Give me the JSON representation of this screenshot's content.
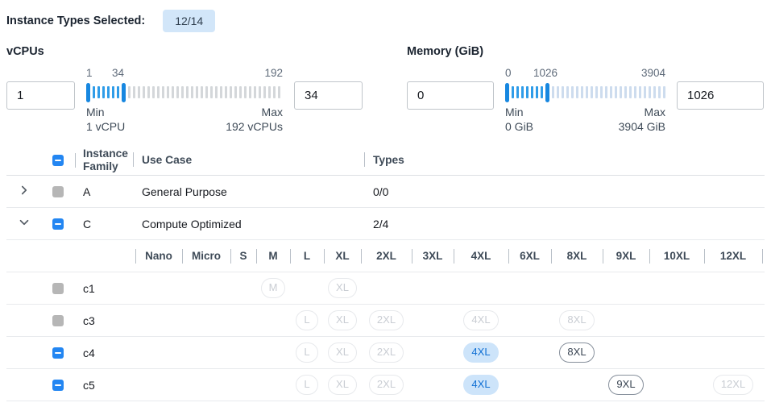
{
  "header": {
    "label": "Instance Types Selected:",
    "badge": "12/14"
  },
  "colors": {
    "accent": "#2386f2",
    "slider_selected": "#2f9ce8",
    "selected_badge_bg": "#cde4fa",
    "selected_badge_text": "#1170d4",
    "count_badge_bg": "#d2e6f9",
    "disabled_checkbox": "#b6b6b6"
  },
  "icons": {
    "expand_collapsed": "chevron-right-icon",
    "expand_expanded": "chevron-down-icon",
    "checkbox_indeterminate": "minus-icon"
  },
  "filters": [
    {
      "id": "vcpus",
      "title": "vCPUs",
      "min_input": "1",
      "max_input": "34",
      "scale": {
        "min": "1",
        "current": "34",
        "max": "192"
      },
      "min_caption": {
        "line1": "Min",
        "line2": "1 vCPU"
      },
      "max_caption": {
        "line1": "Max",
        "line2": "192 vCPUs"
      },
      "ticks": {
        "selected": 6,
        "unselected": 32
      }
    },
    {
      "id": "memory",
      "title": "Memory (GiB)",
      "min_input": "0",
      "max_input": "1026",
      "scale": {
        "min": "0",
        "current": "1026",
        "max": "3904"
      },
      "min_caption": {
        "line1": "Min",
        "line2": "0 GiB"
      },
      "max_caption": {
        "line1": "Max",
        "line2": "3904 GiB"
      },
      "ticks": {
        "selected": 7,
        "unselected": 24
      }
    }
  ],
  "table": {
    "columns": {
      "family": "Instance Family",
      "use_case": "Use Case",
      "types": "Types"
    },
    "select_all_state": "indeterminate",
    "families": [
      {
        "family": "A",
        "use_case": "General Purpose",
        "types": "0/0",
        "expanded": false,
        "checkbox": "gray"
      },
      {
        "family": "C",
        "use_case": "Compute Optimized",
        "types": "2/4",
        "expanded": true,
        "checkbox": "indeterminate"
      }
    ],
    "sizes": [
      "Nano",
      "Micro",
      "S",
      "M",
      "L",
      "XL",
      "2XL",
      "3XL",
      "4XL",
      "6XL",
      "8XL",
      "9XL",
      "10XL",
      "12XL"
    ],
    "type_rows": [
      {
        "name": "c1",
        "checkbox": "gray",
        "badges": {
          "M": "disabled",
          "XL": "disabled"
        }
      },
      {
        "name": "c3",
        "checkbox": "gray",
        "badges": {
          "L": "disabled",
          "XL": "disabled",
          "2XL": "disabled",
          "4XL": "disabled",
          "8XL": "disabled"
        }
      },
      {
        "name": "c4",
        "checkbox": "indeterminate",
        "badges": {
          "L": "disabled",
          "XL": "disabled",
          "2XL": "disabled",
          "4XL": "selected",
          "8XL": "available"
        }
      },
      {
        "name": "c5",
        "checkbox": "indeterminate",
        "badges": {
          "L": "disabled",
          "XL": "disabled",
          "2XL": "disabled",
          "4XL": "selected",
          "9XL": "available",
          "12XL": "disabled"
        }
      }
    ]
  }
}
